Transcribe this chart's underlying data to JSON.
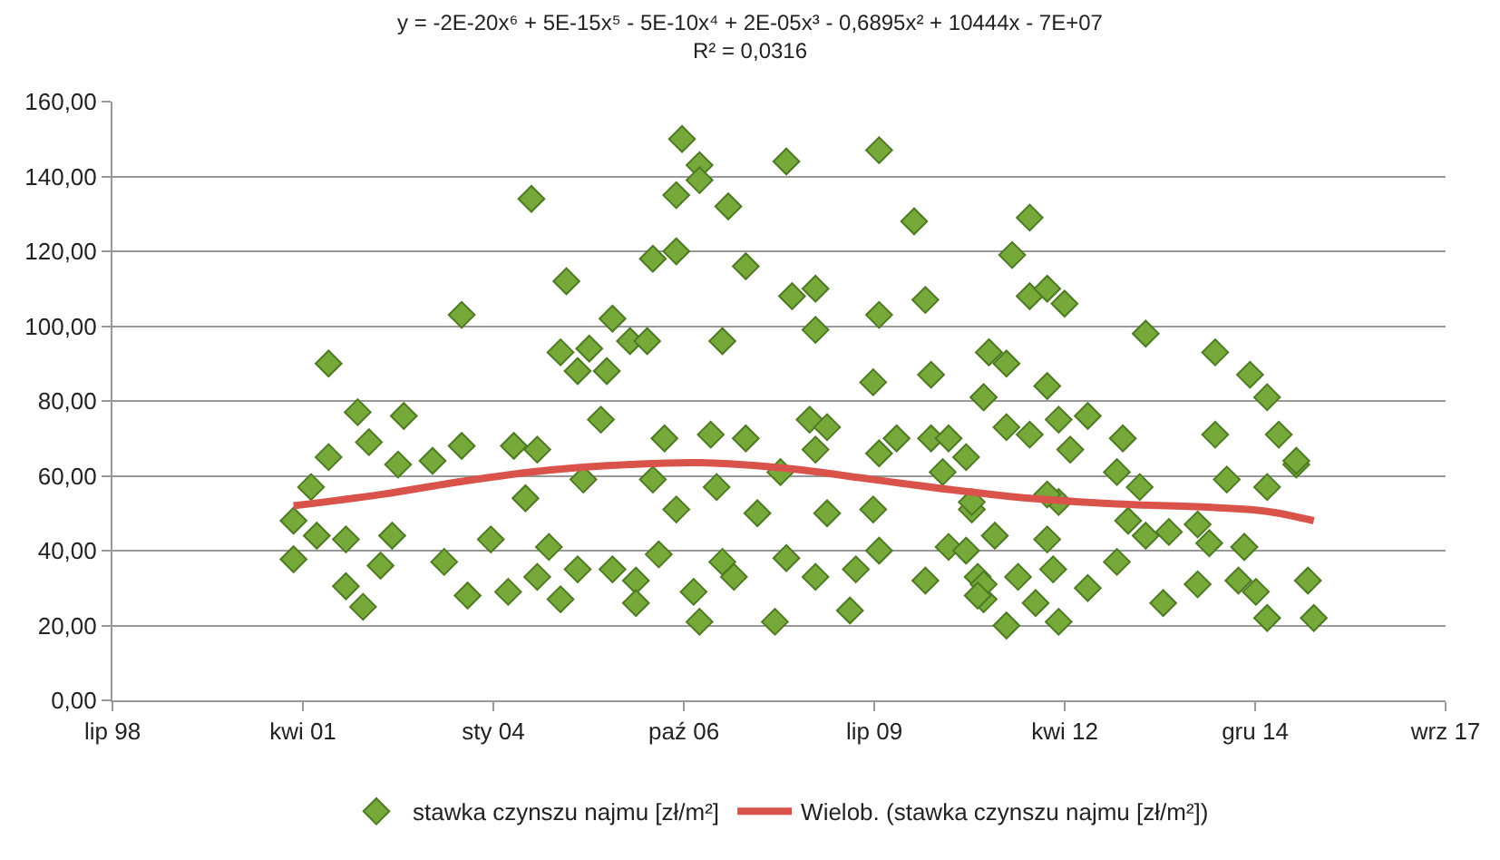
{
  "chart_data": {
    "type": "scatter",
    "title": "y = -2E-20x⁶ + 5E-15x⁵ - 5E-10x⁴ + 2E-05x³ - 0,6895x² + 10444x - 7E+07",
    "subtitle": "R² = 0,0316",
    "xlim": [
      "1998-07-24",
      "2017-09-23"
    ],
    "xticks": [
      {
        "value": "1998-07-24",
        "label": "lip 98"
      },
      {
        "value": "2001-04-19",
        "label": "kwi 01"
      },
      {
        "value": "2004-01-14",
        "label": "sty 04"
      },
      {
        "value": "2006-10-11",
        "label": "paź 06"
      },
      {
        "value": "2009-07-07",
        "label": "lip 09"
      },
      {
        "value": "2012-04-02",
        "label": "kwi 12"
      },
      {
        "value": "2014-12-28",
        "label": "gru 14"
      },
      {
        "value": "2017-09-23",
        "label": "wrz 17"
      }
    ],
    "ylim": [
      0,
      160
    ],
    "yticks": [
      {
        "value": 0,
        "label": "0,00"
      },
      {
        "value": 20,
        "label": "20,00"
      },
      {
        "value": 40,
        "label": "40,00"
      },
      {
        "value": 60,
        "label": "60,00"
      },
      {
        "value": 80,
        "label": "80,00"
      },
      {
        "value": 100,
        "label": "100,00"
      },
      {
        "value": 120,
        "label": "120,00"
      },
      {
        "value": 140,
        "label": "140,00"
      },
      {
        "value": 160,
        "label": "160,00"
      }
    ],
    "grid": "y",
    "legend": "bottom",
    "series": [
      {
        "name": "stawka czynszu najmu [zł/m²]",
        "type": "scatter",
        "marker": "diamond",
        "color": "#76a93a",
        "x": [
          "2001-03",
          "2001-03",
          "2001-06",
          "2001-07",
          "2001-09",
          "2001-09",
          "2001-12",
          "2001-12",
          "2002-03",
          "2002-02",
          "2002-04",
          "2002-06",
          "2002-08",
          "2002-10",
          "2002-09",
          "2003-03",
          "2003-05",
          "2003-08",
          "2003-08",
          "2003-09",
          "2004-01",
          "2004-04",
          "2004-05",
          "2004-07",
          "2004-08",
          "2004-09",
          "2005-02",
          "2005-01",
          "2005-04",
          "2005-06",
          "2005-10",
          "2005-09",
          "2006-01",
          "2006-04",
          "2005-08",
          "2006-05",
          "2006-09",
          "2006-10",
          "2007-01",
          "2007-01",
          "2006-09",
          "2007-06",
          "2007-09",
          "2007-05",
          "2008-04",
          "2008-05",
          "2008-09",
          "2008-09",
          "2009-08",
          "2010-02",
          "2009-08",
          "2010-04",
          "2009-07",
          "2010-05",
          "2008-08",
          "2008-11",
          "2011-03",
          "2011-02",
          "2004-11",
          "2004-09",
          "2005-01",
          "2005-04",
          "2005-05",
          "2005-10",
          "2006-02",
          "2006-02",
          "2006-06",
          "2006-09",
          "2006-07",
          "2007-01",
          "2006-12",
          "2007-03",
          "2007-04",
          "2007-05",
          "2007-09",
          "2007-07",
          "2007-11",
          "2008-02",
          "2008-04",
          "2008-03",
          "2008-09",
          "2008-09",
          "2008-11",
          "2009-03",
          "2009-04",
          "2009-07",
          "2009-08",
          "2009-11",
          "2009-08",
          "2010-04",
          "2010-05",
          "2010-07",
          "2010-08",
          "2010-08",
          "2010-12",
          "2011-01",
          "2011-02",
          "2006-05",
          "2011-10",
          "2011-07",
          "2011-10",
          "2012-01",
          "2012-04",
          "2013-06",
          "2011-03",
          "2011-06",
          "2011-02",
          "2012-01",
          "2014-06",
          "2014-12",
          "2015-03",
          "2011-06",
          "2011-10",
          "2012-03",
          "2012-08",
          "2013-02",
          "2014-06",
          "2015-05",
          "2010-11",
          "2012-05",
          "2015-08",
          "2013-05",
          "2014-08",
          "2015-03",
          "2015-08",
          "2013-01",
          "2012-03",
          "2010-12",
          "2012-01",
          "2013-10",
          "2011-04",
          "2012-01",
          "2013-03",
          "2013-06",
          "2014-03",
          "2014-11",
          "2013-01",
          "2014-05",
          "2014-11",
          "2010-11",
          "2011-02",
          "2011-08",
          "2012-02",
          "2012-08",
          "2011-11",
          "2012-03",
          "2011-06",
          "2013-09",
          "2014-03",
          "2014-10",
          "2015-01",
          "2015-03",
          "2015-10",
          "2015-11",
          "2011-01"
        ],
        "values": [
          37.7,
          48,
          57,
          44,
          65,
          90,
          43,
          30.5,
          25,
          77,
          69,
          36,
          44,
          76,
          63,
          64,
          37,
          103,
          68,
          28,
          43,
          29,
          68,
          54,
          134,
          67,
          112,
          93,
          88,
          94,
          102,
          88,
          96,
          96,
          75,
          118,
          120,
          150,
          143,
          139,
          135,
          132,
          116,
          96,
          144,
          108,
          110,
          99,
          147,
          128,
          103,
          107,
          85,
          87,
          75,
          73,
          93,
          81,
          41,
          33,
          27,
          35,
          59,
          35,
          32,
          26,
          39,
          51,
          70,
          21,
          29,
          71,
          57,
          37,
          70,
          33,
          50,
          21,
          38,
          61,
          67,
          33,
          50,
          24,
          35,
          51,
          66,
          70,
          40,
          32,
          70,
          61,
          41,
          70,
          51,
          33,
          27,
          59,
          129,
          119,
          108,
          110,
          106,
          98,
          93,
          90,
          81,
          84,
          93,
          87,
          81,
          73,
          71,
          75,
          76,
          70,
          71,
          71,
          65,
          67,
          63,
          57,
          59,
          57,
          64,
          61,
          53,
          53,
          55,
          45,
          44,
          43,
          48,
          44,
          47,
          41,
          37,
          42,
          41,
          40,
          31,
          33,
          35,
          30,
          26,
          21,
          20,
          26,
          31,
          32,
          29,
          22,
          32,
          22,
          28
        ]
      },
      {
        "name": "Wielob. (stawka czynszu najmu [zł/m²])",
        "type": "line",
        "line_style": "solid",
        "color": "#d9534a",
        "x": [
          "2001-03",
          "2002-06",
          "2003-08",
          "2004-11",
          "2006-01",
          "2007-01",
          "2008-04",
          "2009-07",
          "2010-10",
          "2011-10",
          "2013-01",
          "2014-06",
          "2015-03",
          "2015-11"
        ],
        "values": [
          52,
          55,
          58.5,
          61.5,
          63,
          63.5,
          62,
          59,
          56,
          54,
          52.5,
          51.5,
          50.5,
          48
        ]
      }
    ]
  }
}
